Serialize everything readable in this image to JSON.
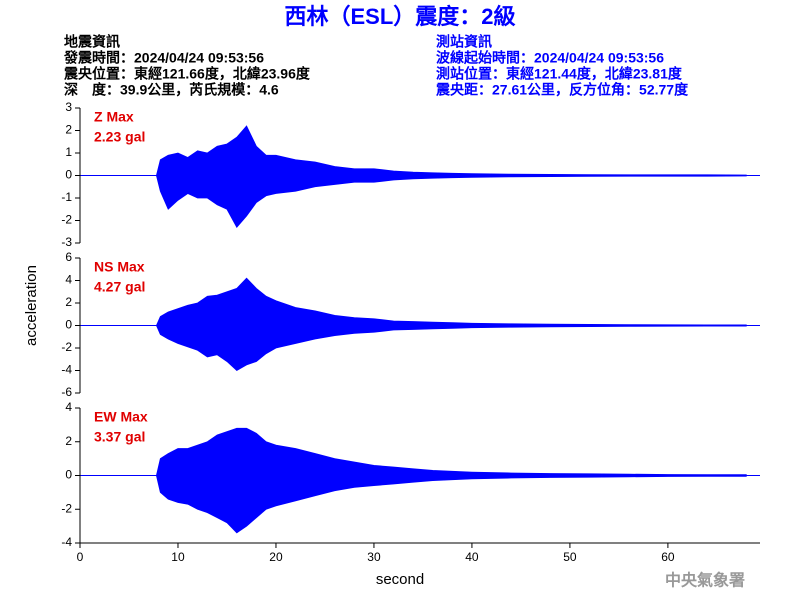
{
  "header": {
    "title": "西林（ESL）震度：2級",
    "left": [
      "地震資訊",
      "發震時間：2024/04/24 09:53:56",
      "震央位置：東經121.66度，北緯23.96度",
      "深　度：39.9公里，芮氏規模：4.6"
    ],
    "right": [
      "測站資訊",
      "波線起始時間：2024/04/24 09:53:56",
      "測站位置：東經121.44度，北緯23.81度",
      "震央距：27.61公里，反方位角：52.77度"
    ],
    "footer": "中央氣象署"
  },
  "chart_data": [
    {
      "type": "line",
      "label": "Z Max",
      "max_label": "2.23 gal",
      "color": "#0000ff",
      "label_color": "#e00000",
      "xlim": [
        0,
        69.4
      ],
      "ylim": [
        -3,
        3
      ],
      "yticks": [
        -3,
        -2,
        -1,
        0,
        1,
        2,
        3
      ],
      "x": [
        0,
        7.8,
        8.2,
        9,
        10,
        11,
        12,
        13,
        14,
        15,
        16,
        17,
        18,
        19,
        20,
        22,
        24,
        26,
        28,
        30,
        32,
        34,
        36,
        38,
        40,
        44,
        48,
        52,
        56,
        60,
        64,
        68
      ],
      "upper": [
        0,
        0,
        0.7,
        0.9,
        1.0,
        0.8,
        1.1,
        1.0,
        1.3,
        1.4,
        1.7,
        2.2,
        1.3,
        0.9,
        0.9,
        0.7,
        0.6,
        0.4,
        0.3,
        0.3,
        0.2,
        0.15,
        0.12,
        0.1,
        0.08,
        0.06,
        0.05,
        0.04,
        0.03,
        0.03,
        0.03,
        0.02
      ],
      "lower": [
        0,
        0,
        -0.7,
        -1.5,
        -1.1,
        -0.8,
        -1.0,
        -1.0,
        -1.3,
        -1.5,
        -2.3,
        -1.8,
        -1.2,
        -0.9,
        -0.8,
        -0.7,
        -0.5,
        -0.4,
        -0.3,
        -0.3,
        -0.2,
        -0.15,
        -0.12,
        -0.1,
        -0.08,
        -0.06,
        -0.05,
        -0.04,
        -0.03,
        -0.03,
        -0.03,
        -0.02
      ]
    },
    {
      "type": "line",
      "label": "NS Max",
      "max_label": "4.27 gal",
      "color": "#0000ff",
      "label_color": "#e00000",
      "ylabel": "acceleration",
      "xlim": [
        0,
        69.4
      ],
      "ylim": [
        -6,
        6
      ],
      "yticks": [
        -6,
        -4,
        -2,
        0,
        2,
        4,
        6
      ],
      "x": [
        0,
        7.8,
        8.2,
        9,
        10,
        11,
        12,
        13,
        14,
        15,
        16,
        17,
        18,
        19,
        20,
        22,
        24,
        26,
        28,
        30,
        32,
        34,
        36,
        38,
        40,
        44,
        48,
        52,
        56,
        60,
        64,
        68
      ],
      "upper": [
        0,
        0,
        0.8,
        1.2,
        1.5,
        1.8,
        2.0,
        2.6,
        2.7,
        3.0,
        3.3,
        4.2,
        3.3,
        2.6,
        2.2,
        1.6,
        1.3,
        0.9,
        0.7,
        0.6,
        0.4,
        0.35,
        0.3,
        0.25,
        0.2,
        0.15,
        0.12,
        0.1,
        0.08,
        0.06,
        0.05,
        0.05
      ],
      "lower": [
        0,
        0,
        -0.8,
        -1.2,
        -1.6,
        -1.9,
        -2.2,
        -2.8,
        -2.6,
        -3.2,
        -4.0,
        -3.5,
        -3.2,
        -2.5,
        -2.0,
        -1.6,
        -1.2,
        -0.9,
        -0.7,
        -0.6,
        -0.4,
        -0.35,
        -0.3,
        -0.25,
        -0.2,
        -0.15,
        -0.12,
        -0.1,
        -0.08,
        -0.06,
        -0.05,
        -0.05
      ]
    },
    {
      "type": "line",
      "label": "EW Max",
      "max_label": "3.37 gal",
      "color": "#0000ff",
      "label_color": "#e00000",
      "xlabel": "second",
      "xlim": [
        0,
        69.4
      ],
      "ylim": [
        -4,
        4
      ],
      "yticks": [
        -4,
        -2,
        0,
        2,
        4
      ],
      "xticks": [
        0,
        10,
        20,
        30,
        40,
        50,
        60
      ],
      "x": [
        0,
        7.8,
        8.2,
        9,
        10,
        11,
        12,
        13,
        14,
        15,
        16,
        17,
        18,
        19,
        20,
        22,
        24,
        26,
        28,
        30,
        32,
        34,
        36,
        38,
        40,
        44,
        48,
        52,
        56,
        60,
        64,
        68
      ],
      "upper": [
        0,
        0,
        1.0,
        1.3,
        1.6,
        1.6,
        1.8,
        2.0,
        2.4,
        2.6,
        2.8,
        2.8,
        2.5,
        2.0,
        1.8,
        1.6,
        1.3,
        1.0,
        0.8,
        0.6,
        0.5,
        0.4,
        0.3,
        0.25,
        0.2,
        0.15,
        0.12,
        0.1,
        0.08,
        0.06,
        0.05,
        0.05
      ],
      "lower": [
        0,
        0,
        -1.0,
        -1.4,
        -1.6,
        -1.7,
        -2.0,
        -2.2,
        -2.5,
        -2.8,
        -3.4,
        -3.0,
        -2.5,
        -2.0,
        -1.8,
        -1.5,
        -1.2,
        -0.9,
        -0.7,
        -0.6,
        -0.5,
        -0.4,
        -0.3,
        -0.25,
        -0.2,
        -0.15,
        -0.12,
        -0.1,
        -0.08,
        -0.06,
        -0.05,
        -0.05
      ]
    }
  ]
}
